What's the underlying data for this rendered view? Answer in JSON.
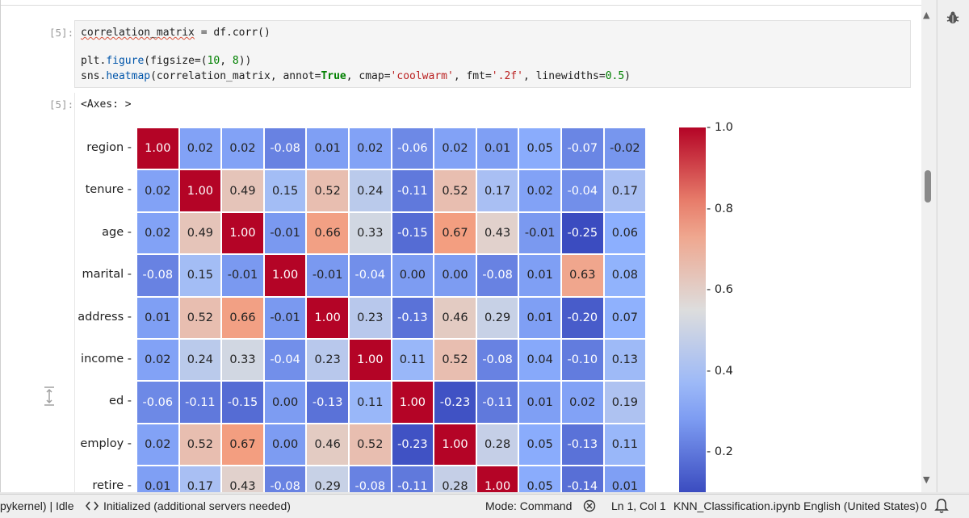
{
  "cell": {
    "in_prompt": "[5]:",
    "out_prompt": "[5]:",
    "output_text": "<Axes: >"
  },
  "code": {
    "line1": {
      "p1": "correlation_matrix",
      "p2": " = df.corr()"
    },
    "line2": {
      "p1": "plt.",
      "fn": "figure",
      "p2": "(figsize=(",
      "n1": "10",
      "p3": ", ",
      "n2": "8",
      "p4": "))"
    },
    "line3": {
      "p1": "sns.",
      "fn": "heatmap",
      "p2": "(correlation_matrix, annot=",
      "kw": "True",
      "p3": ", cmap=",
      "s1": "'coolwarm'",
      "p4": ", fmt=",
      "s2": "'.2f'",
      "p5": ", linewidths=",
      "n1": "0.5",
      "p6": ")"
    }
  },
  "chart_data": {
    "type": "heatmap",
    "colormap": "coolwarm",
    "rows": [
      "region",
      "tenure",
      "age",
      "marital",
      "address",
      "income",
      "ed",
      "employ",
      "retire"
    ],
    "values": [
      [
        1.0,
        0.02,
        0.02,
        -0.08,
        0.01,
        0.02,
        -0.06,
        0.02,
        0.01,
        0.05,
        -0.07,
        -0.02
      ],
      [
        0.02,
        1.0,
        0.49,
        0.15,
        0.52,
        0.24,
        -0.11,
        0.52,
        0.17,
        0.02,
        -0.04,
        0.17
      ],
      [
        0.02,
        0.49,
        1.0,
        -0.01,
        0.66,
        0.33,
        -0.15,
        0.67,
        0.43,
        -0.01,
        -0.25,
        0.06
      ],
      [
        -0.08,
        0.15,
        -0.01,
        1.0,
        -0.01,
        -0.04,
        0.0,
        -0.0,
        -0.08,
        0.01,
        0.63,
        0.08
      ],
      [
        0.01,
        0.52,
        0.66,
        -0.01,
        1.0,
        0.23,
        -0.13,
        0.46,
        0.29,
        0.01,
        -0.2,
        0.07
      ],
      [
        0.02,
        0.24,
        0.33,
        -0.04,
        0.23,
        1.0,
        0.11,
        0.52,
        -0.08,
        0.04,
        -0.1,
        0.13
      ],
      [
        -0.06,
        -0.11,
        -0.15,
        0.0,
        -0.13,
        0.11,
        1.0,
        -0.23,
        -0.11,
        0.01,
        0.02,
        0.19
      ],
      [
        0.02,
        0.52,
        0.67,
        -0.0,
        0.46,
        0.52,
        -0.23,
        1.0,
        0.28,
        0.05,
        -0.13,
        0.11
      ],
      [
        0.01,
        0.17,
        0.43,
        -0.08,
        0.29,
        -0.08,
        -0.11,
        0.28,
        1.0,
        0.05,
        -0.14,
        0.01
      ]
    ],
    "vmin": -0.25,
    "vmax": 1.0,
    "colorbar_ticks": [
      1.0,
      0.8,
      0.6,
      0.4,
      0.2
    ],
    "colorbar_tick_labels": [
      "1.0",
      "0.8",
      "0.6",
      "0.4",
      "0.2"
    ]
  },
  "status": {
    "kernel": "pykernel) | Idle",
    "servers": "Initialized (additional servers needed)",
    "mode": "Mode: Command",
    "position": "Ln 1, Col 1",
    "filename": "KNN_Classification.ipynb",
    "language": "English (United States)",
    "notifications": "0"
  }
}
